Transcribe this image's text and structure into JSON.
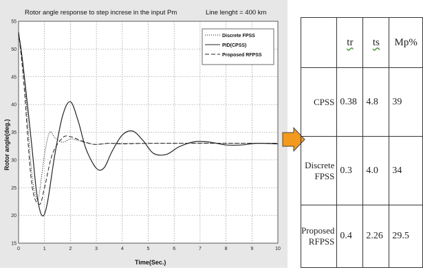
{
  "chart_data": {
    "type": "line",
    "title": "Rotor angle response to step increse in the input Pm",
    "annotation": "Line lenght = 400 km",
    "xlabel": "Time(Sec.)",
    "ylabel": "Rotor angle(deg.)",
    "xlim": [
      0,
      10
    ],
    "ylim": [
      15,
      55
    ],
    "xticks": [
      "0",
      "1",
      "2",
      "3",
      "4",
      "5",
      "6",
      "7",
      "8",
      "9",
      "10"
    ],
    "yticks": [
      "15",
      "20",
      "25",
      "30",
      "35",
      "40",
      "45",
      "50",
      "55"
    ],
    "grid": true,
    "legend_position": "top-right",
    "series": [
      {
        "name": "Discrete FPSS",
        "style": "dotted",
        "x": [
          0,
          0.2,
          0.5,
          0.7,
          0.8,
          1.0,
          1.2,
          1.4,
          1.7,
          2.0,
          2.3,
          2.6,
          3.0,
          3.5,
          4.0,
          5.0,
          6.0,
          8.0,
          10.0
        ],
        "y": [
          53,
          46,
          28,
          23,
          24,
          31,
          35,
          34,
          33.2,
          33.8,
          33.5,
          33.1,
          32.8,
          33.0,
          33.0,
          33.0,
          33.0,
          33.0,
          33.0
        ]
      },
      {
        "name": "PID(CPSS)",
        "style": "solid",
        "x": [
          0,
          0.2,
          0.5,
          0.7,
          0.9,
          1.1,
          1.4,
          1.7,
          2.0,
          2.3,
          2.6,
          3.0,
          3.3,
          3.6,
          4.0,
          4.4,
          4.8,
          5.2,
          5.7,
          6.2,
          6.8,
          7.4,
          8.0,
          8.6,
          9.2,
          10.0
        ],
        "y": [
          53,
          46,
          33,
          24,
          20,
          22,
          31,
          38,
          40.5,
          37,
          32,
          28.5,
          28.6,
          31.5,
          34.5,
          35.2,
          33.5,
          31.2,
          31.0,
          32.4,
          33.3,
          33.2,
          32.7,
          32.7,
          33.0,
          32.9
        ]
      },
      {
        "name": "Proposed RFPSS",
        "style": "dashed",
        "x": [
          0,
          0.2,
          0.5,
          0.8,
          1.0,
          1.3,
          1.7,
          2.0,
          2.4,
          2.8,
          3.0,
          3.5,
          4.0,
          5.0,
          6.0,
          8.0,
          10.0
        ],
        "y": [
          53,
          44,
          26,
          22,
          25,
          31,
          34,
          34.2,
          33.5,
          32.9,
          32.8,
          33.0,
          32.9,
          33.0,
          33.0,
          33.0,
          33.0
        ]
      }
    ]
  },
  "table": {
    "headers": [
      "",
      "tr",
      "ts",
      "Mp%"
    ],
    "rows": [
      {
        "label": [
          "CPSS"
        ],
        "values": [
          "0.38",
          "4.8",
          "39"
        ]
      },
      {
        "label": [
          "Discrete",
          "FPSS"
        ],
        "values": [
          "0.3",
          "4.0",
          "34"
        ]
      },
      {
        "label": [
          "Proposed",
          "RFPSS"
        ],
        "values": [
          "0.4",
          "2.26",
          "29.5"
        ]
      }
    ]
  },
  "colors": {
    "arrow_fill": "#f39a1e",
    "arrow_stroke": "#444444",
    "panel_bg": "#e7e7e7",
    "plot_bg": "#ffffff",
    "line": "#222222"
  }
}
